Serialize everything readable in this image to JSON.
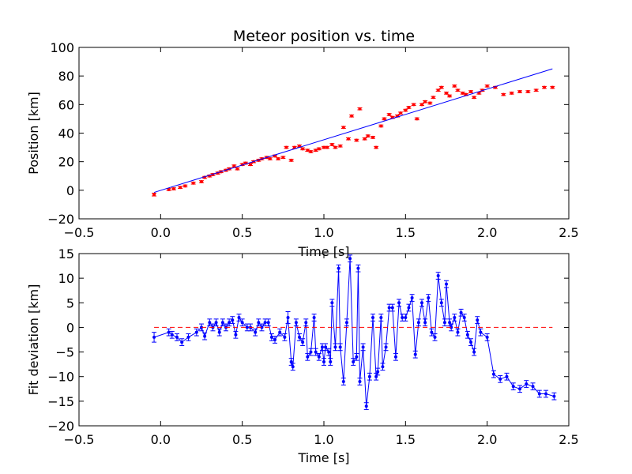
{
  "chart_data": [
    {
      "type": "scatter",
      "title": "Meteor position vs. time",
      "xlabel": "Time [s]",
      "ylabel": "Position [km]",
      "xlim": [
        -0.5,
        2.5
      ],
      "ylim": [
        -20,
        100
      ],
      "xticks": [
        "−0.5",
        "0.0",
        "0.5",
        "1.0",
        "1.5",
        "2.0",
        "2.5"
      ],
      "yticks": [
        "−20",
        "0",
        "20",
        "40",
        "60",
        "80",
        "100"
      ],
      "grid": false,
      "colors": {
        "points": "#ff0000",
        "fit": "#0000ff"
      },
      "series": [
        {
          "kind": "points-with-errorbars",
          "x": [
            -0.04,
            0.05,
            0.08,
            0.12,
            0.15,
            0.2,
            0.25,
            0.27,
            0.3,
            0.32,
            0.35,
            0.37,
            0.4,
            0.42,
            0.45,
            0.47,
            0.5,
            0.52,
            0.55,
            0.57,
            0.6,
            0.62,
            0.65,
            0.67,
            0.7,
            0.72,
            0.75,
            0.77,
            0.8,
            0.82,
            0.85,
            0.87,
            0.9,
            0.92,
            0.95,
            0.97,
            1.0,
            1.02,
            1.05,
            1.07,
            1.1,
            1.12,
            1.15,
            1.17,
            1.2,
            1.22,
            1.25,
            1.27,
            1.3,
            1.32,
            1.35,
            1.37,
            1.4,
            1.42,
            1.45,
            1.47,
            1.5,
            1.52,
            1.55,
            1.57,
            1.6,
            1.62,
            1.65,
            1.67,
            1.7,
            1.72,
            1.75,
            1.77,
            1.8,
            1.82,
            1.85,
            1.87,
            1.9,
            1.92,
            1.95,
            1.97,
            2.0,
            2.05,
            2.1,
            2.15,
            2.2,
            2.25,
            2.3,
            2.35,
            2.4
          ],
          "y": [
            -3,
            0.5,
            1,
            2,
            3,
            5,
            6,
            9,
            10,
            11,
            12,
            13,
            14,
            15,
            17,
            15,
            18,
            19,
            18,
            20,
            21,
            22,
            23,
            22,
            24,
            22,
            23,
            30,
            21,
            30,
            31,
            29,
            28,
            27,
            28,
            29,
            30,
            30,
            32,
            30,
            31,
            44,
            36,
            52,
            35,
            57,
            36,
            38,
            37,
            30,
            45,
            50,
            53,
            51,
            52,
            54,
            56,
            58,
            60,
            50,
            60,
            62,
            61,
            65,
            70,
            72,
            68,
            66,
            73,
            70,
            68,
            67,
            69,
            65,
            68,
            70,
            73,
            72,
            67,
            68,
            69,
            69,
            70,
            72,
            72
          ],
          "errors": [
            1,
            0.7,
            0.7,
            0.7,
            0.7,
            0.7,
            0.7,
            0.7,
            0.7,
            0.7,
            0.7,
            0.7,
            0.7,
            0.7,
            0.7,
            0.7,
            0.7,
            0.7,
            0.7,
            0.7,
            0.7,
            0.7,
            0.7,
            0.7,
            0.7,
            0.7,
            0.7,
            0.7,
            0.7,
            0.7,
            0.7,
            0.7,
            0.7,
            0.7,
            0.7,
            0.7,
            0.7,
            0.7,
            0.7,
            0.7,
            0.7,
            0.7,
            0.7,
            0.7,
            0.7,
            0.7,
            0.7,
            0.7,
            0.7,
            0.7,
            0.7,
            0.7,
            0.7,
            0.7,
            0.7,
            0.7,
            0.7,
            0.7,
            0.7,
            0.7,
            0.7,
            0.7,
            0.7,
            0.7,
            0.7,
            0.7,
            0.7,
            0.7,
            0.7,
            0.7,
            0.7,
            0.7,
            0.7,
            0.7,
            0.7,
            0.7,
            0.7,
            0.7,
            0.7,
            0.7,
            0.7,
            0.7,
            0.7,
            0.7,
            0.7
          ]
        },
        {
          "kind": "fit-line",
          "x": [
            -0.04,
            2.4
          ],
          "y": [
            -1.5,
            85
          ]
        }
      ]
    },
    {
      "type": "line",
      "title": "",
      "xlabel": "Time [s]",
      "ylabel": "Fit deviation [km]",
      "xlim": [
        -0.5,
        2.5
      ],
      "ylim": [
        -20,
        15
      ],
      "xticks": [
        "−0.5",
        "0.0",
        "0.5",
        "1.0",
        "1.5",
        "2.0",
        "2.5"
      ],
      "yticks": [
        "−20",
        "−15",
        "−10",
        "−5",
        "0",
        "5",
        "10",
        "15"
      ],
      "grid": false,
      "colors": {
        "line": "#0000ff",
        "zero": "#ff0000"
      },
      "series": [
        {
          "kind": "line-with-errorbars",
          "x": [
            -0.04,
            0.05,
            0.07,
            0.1,
            0.13,
            0.17,
            0.22,
            0.25,
            0.27,
            0.3,
            0.32,
            0.34,
            0.36,
            0.38,
            0.4,
            0.42,
            0.44,
            0.46,
            0.48,
            0.5,
            0.53,
            0.55,
            0.58,
            0.6,
            0.62,
            0.64,
            0.66,
            0.68,
            0.7,
            0.73,
            0.76,
            0.78,
            0.8,
            0.81,
            0.83,
            0.85,
            0.87,
            0.89,
            0.9,
            0.92,
            0.94,
            0.95,
            0.97,
            0.99,
            1.0,
            1.01,
            1.03,
            1.04,
            1.05,
            1.07,
            1.09,
            1.1,
            1.12,
            1.14,
            1.16,
            1.18,
            1.2,
            1.21,
            1.22,
            1.24,
            1.26,
            1.28,
            1.3,
            1.32,
            1.33,
            1.35,
            1.36,
            1.38,
            1.4,
            1.42,
            1.44,
            1.46,
            1.48,
            1.5,
            1.52,
            1.54,
            1.56,
            1.58,
            1.6,
            1.62,
            1.64,
            1.66,
            1.68,
            1.7,
            1.72,
            1.74,
            1.75,
            1.77,
            1.78,
            1.8,
            1.82,
            1.84,
            1.86,
            1.88,
            1.9,
            1.92,
            1.94,
            1.96,
            2.0,
            2.04,
            2.08,
            2.12,
            2.16,
            2.2,
            2.24,
            2.28,
            2.32,
            2.36,
            2.41
          ],
          "y": [
            -2,
            -1,
            -1.5,
            -2,
            -3,
            -2,
            -1,
            0,
            -1.8,
            1,
            0,
            1,
            -1,
            1,
            0,
            1,
            1.5,
            -1.5,
            2,
            1,
            0,
            0,
            -1,
            1,
            0,
            1,
            1,
            -2,
            -2.5,
            -1,
            -2,
            2,
            -7,
            -8,
            1,
            -2,
            -3,
            1,
            -6,
            -5,
            2,
            -5,
            -6,
            -4,
            -7,
            -4,
            -5,
            -7,
            5,
            -4,
            12,
            -4,
            -11,
            1,
            14,
            -7,
            -6,
            12,
            -11,
            -4,
            -16,
            -10,
            2,
            -10,
            -9,
            2,
            -8,
            -4,
            4,
            4,
            -6,
            5,
            2,
            2,
            4,
            6,
            -5.5,
            1,
            5,
            1,
            6,
            -1,
            -2,
            10.5,
            5,
            1,
            8.8,
            1,
            0,
            2,
            -1,
            3,
            2,
            -1.5,
            -3,
            -5,
            1.5,
            -1,
            -2,
            -9.5,
            -10.5,
            -10,
            -12,
            -12.5,
            -11.5,
            -12,
            -13.5,
            -13.5,
            -14
          ],
          "errors": [
            1,
            0.7,
            0.7,
            0.7,
            0.7,
            0.7,
            0.7,
            0.7,
            0.7,
            0.7,
            0.7,
            0.7,
            0.7,
            0.7,
            0.7,
            0.7,
            0.7,
            0.7,
            0.7,
            0.7,
            0.7,
            0.7,
            0.7,
            0.7,
            0.7,
            0.7,
            0.7,
            0.7,
            0.7,
            0.7,
            0.7,
            1.2,
            0.7,
            0.7,
            0.7,
            0.7,
            0.7,
            0.7,
            0.7,
            0.7,
            0.7,
            0.7,
            0.7,
            0.7,
            0.7,
            0.7,
            0.7,
            0.7,
            0.7,
            0.7,
            0.7,
            0.7,
            0.7,
            0.7,
            0.7,
            0.7,
            0.7,
            0.7,
            0.7,
            0.7,
            0.7,
            0.7,
            0.7,
            0.7,
            0.7,
            0.7,
            0.7,
            0.7,
            0.7,
            0.7,
            0.7,
            0.7,
            0.7,
            0.7,
            0.7,
            0.7,
            0.7,
            0.7,
            0.7,
            0.7,
            0.7,
            0.7,
            0.7,
            0.7,
            0.7,
            0.7,
            0.7,
            0.7,
            0.7,
            0.7,
            0.7,
            0.7,
            0.7,
            0.7,
            0.7,
            0.7,
            0.7,
            0.7,
            0.7,
            0.7,
            0.7,
            0.7,
            0.7,
            0.7,
            0.7,
            0.7,
            0.7,
            0.7,
            0.7
          ]
        },
        {
          "kind": "zero-reference",
          "x": [
            -0.04,
            2.4
          ],
          "y": [
            0,
            0
          ],
          "style": "dashed"
        }
      ]
    }
  ]
}
